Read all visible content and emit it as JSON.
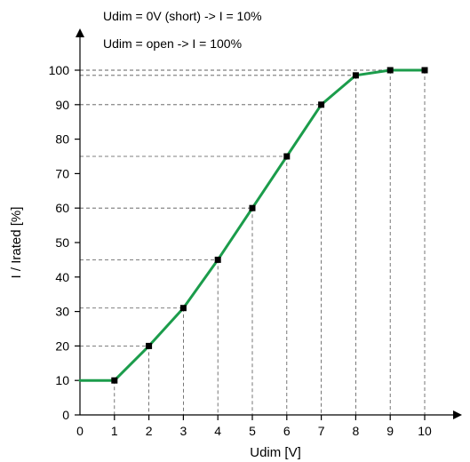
{
  "chart_data": {
    "type": "line",
    "xlabel": "Udim [V]",
    "ylabel": "I / Irated [%]",
    "xlim": [
      0,
      10
    ],
    "ylim": [
      0,
      100
    ],
    "x_ticks": [
      "0",
      "1",
      "2",
      "3",
      "4",
      "5",
      "6",
      "7",
      "8",
      "9",
      "10"
    ],
    "y_ticks": [
      "0",
      "10",
      "20",
      "30",
      "40",
      "50",
      "60",
      "70",
      "80",
      "90",
      "100"
    ],
    "annotations": [
      "Udim = 0V (short) -> I = 10%",
      "Udim = open -> I = 100%"
    ],
    "grid": "dashed guide lines from markers to axes",
    "color": "#1b9c4b",
    "marker_color": "#000000",
    "x": [
      0,
      1,
      2,
      3,
      4,
      5,
      6,
      7,
      8,
      9,
      10
    ],
    "y": [
      10,
      10,
      20,
      31,
      45,
      60,
      75,
      90,
      98.5,
      100,
      100
    ],
    "marker_points": [
      1,
      2,
      3,
      4,
      5,
      6,
      7,
      8,
      9,
      10
    ]
  }
}
